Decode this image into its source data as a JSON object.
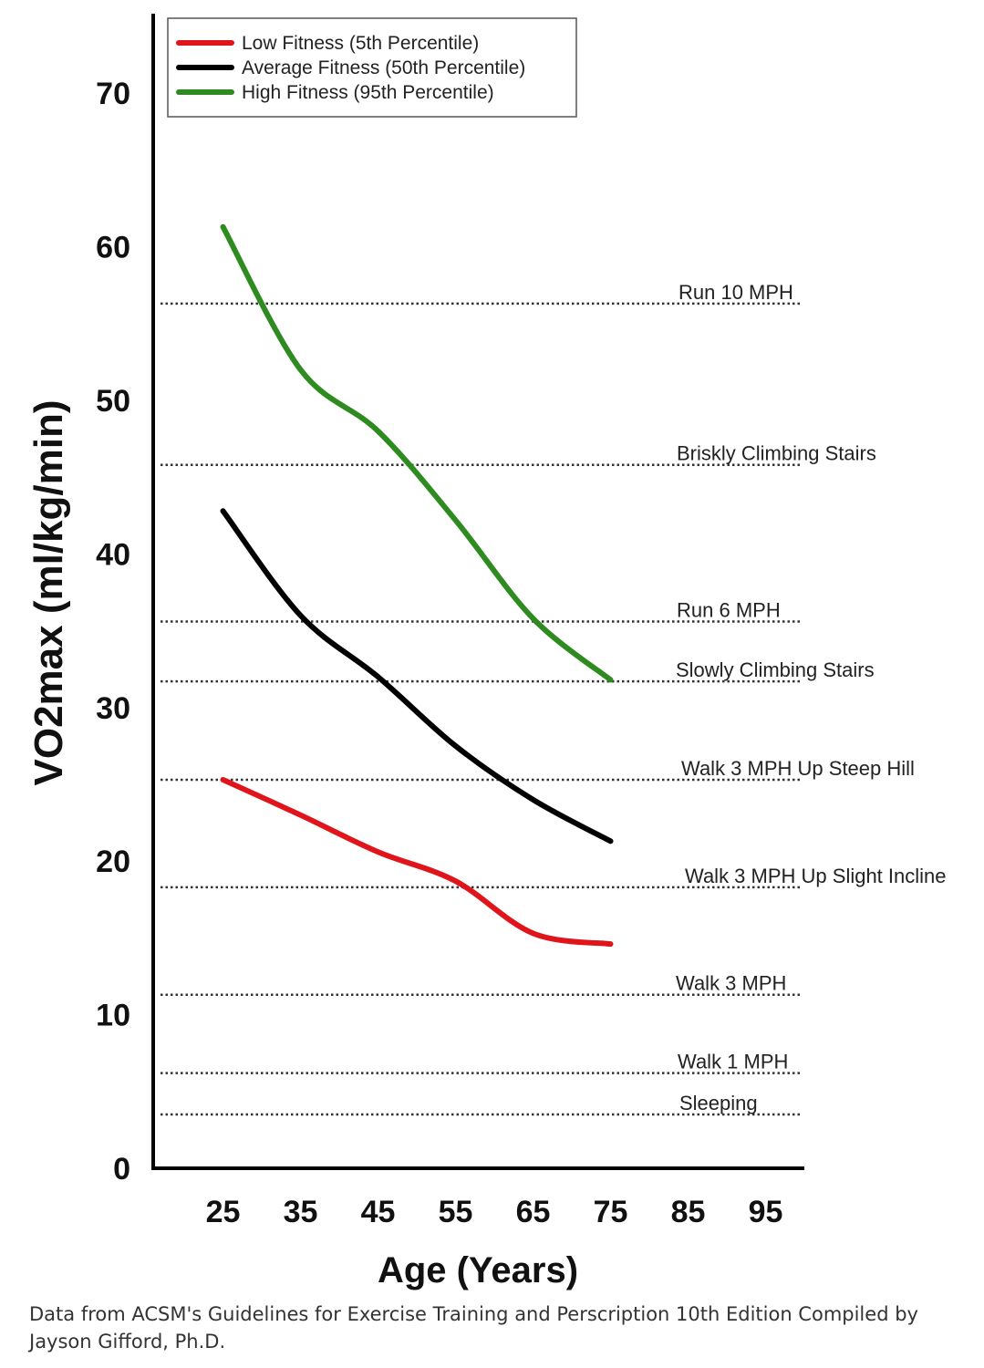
{
  "chart_data": {
    "type": "line",
    "xlabel": "Age (Years)",
    "ylabel": "VO2max (ml/kg/min)",
    "x_ticks": [
      25,
      35,
      45,
      55,
      65,
      75,
      85,
      95
    ],
    "y_ticks": [
      0,
      10,
      20,
      30,
      40,
      50,
      60,
      70
    ],
    "xlim": [
      16,
      100
    ],
    "ylim": [
      0,
      75
    ],
    "grid": false,
    "legend_position": "top-left",
    "series": [
      {
        "name": "Low Fitness (5th Percentile)",
        "color": "#e0151b",
        "x": [
          25,
          35,
          45,
          55,
          65,
          75
        ],
        "y": [
          25.3,
          23.0,
          20.6,
          18.7,
          15.3,
          14.6
        ]
      },
      {
        "name": "Average Fitness (50th Percentile)",
        "color": "#000000",
        "x": [
          25,
          35,
          45,
          55,
          65,
          75
        ],
        "y": [
          42.8,
          36.0,
          32.0,
          27.5,
          24.0,
          21.3
        ]
      },
      {
        "name": "High Fitness (95th Percentile)",
        "color": "#2e8b1f",
        "x": [
          25,
          35,
          45,
          55,
          65,
          75
        ],
        "y": [
          61.3,
          52.0,
          48.0,
          42.2,
          35.8,
          31.8
        ]
      }
    ],
    "reference_lines": [
      {
        "label": "Run 10 MPH",
        "y": 56.3
      },
      {
        "label": "Briskly Climbing Stairs",
        "y": 45.8
      },
      {
        "label": "Run 6 MPH",
        "y": 35.6
      },
      {
        "label": "Slowly Climbing Stairs",
        "y": 31.7
      },
      {
        "label": "Walk 3 MPH Up Steep Hill",
        "y": 25.3
      },
      {
        "label": "Walk 3 MPH Up Slight Incline",
        "y": 18.3
      },
      {
        "label": "Walk 3 MPH",
        "y": 11.3
      },
      {
        "label": "Walk 1 MPH",
        "y": 6.2
      },
      {
        "label": "Sleeping",
        "y": 3.5
      }
    ]
  },
  "caption": "Data from ACSM's Guidelines for Exercise Training and Perscription 10th Edition Compiled by Jayson Gifford, Ph.D."
}
